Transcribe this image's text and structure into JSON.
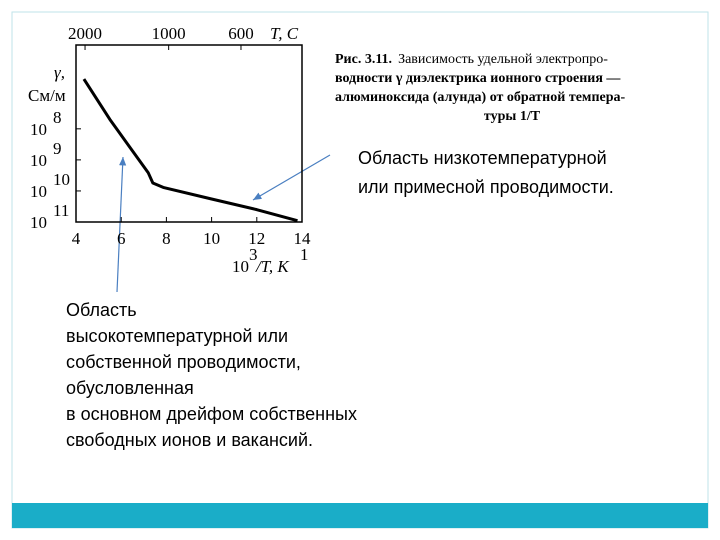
{
  "chart_data": {
    "type": "line",
    "x": [
      4.35,
      5.5,
      7.2,
      7.4,
      7.86,
      10,
      12,
      13.8
    ],
    "series": [
      {
        "color": "#000000",
        "values": [
          4e-07,
          2e-08,
          3.8e-10,
          1.8e-10,
          1.3e-10,
          5.5e-11,
          2.5e-11,
          1.1e-11
        ]
      }
    ],
    "xlim": [
      4,
      14
    ],
    "xticks": [
      4,
      6,
      8,
      10,
      12,
      14
    ],
    "ylog": true,
    "ylim": [
      1e-11,
      5e-06
    ],
    "yticks": [
      {
        "value": 1e-08,
        "label": "10",
        "exponent": "8"
      },
      {
        "value": 1e-09,
        "label": "10",
        "exponent": "9"
      },
      {
        "value": 1e-10,
        "label": "10",
        "exponent": "10"
      },
      {
        "value": 1e-11,
        "label": "10",
        "exponent": "11"
      }
    ],
    "x2ticks": [
      {
        "value": 4.4,
        "label": "2000"
      },
      {
        "value": 8.1,
        "label": "1000"
      },
      {
        "value": 11.3,
        "label": "600"
      }
    ],
    "x2label": "T,  C",
    "ylabel": [
      "γ,",
      "См/м"
    ],
    "xlabel": {
      "base": "10",
      "sup": "3",
      "text": "/T, K",
      "sup2": "1"
    },
    "caption": {
      "label": "Рис. 3.11.",
      "lines": [
        "Зависимость удельной электропро-",
        "водности γ диэлектрика ионного строения —",
        "алюминоксида (алунда) от обратной темпера-",
        "туры 1/T"
      ]
    },
    "annotations": [
      {
        "lines": [
          "Область низкотемпературной",
          "или примесной проводимости."
        ]
      },
      {
        "lines": [
          "Область",
          "высокотемпературной или",
          "собственной проводимости,",
          "обусловленная",
          "в основном дрейфом собственных",
          "свободных ионов и вакансий."
        ]
      }
    ]
  }
}
